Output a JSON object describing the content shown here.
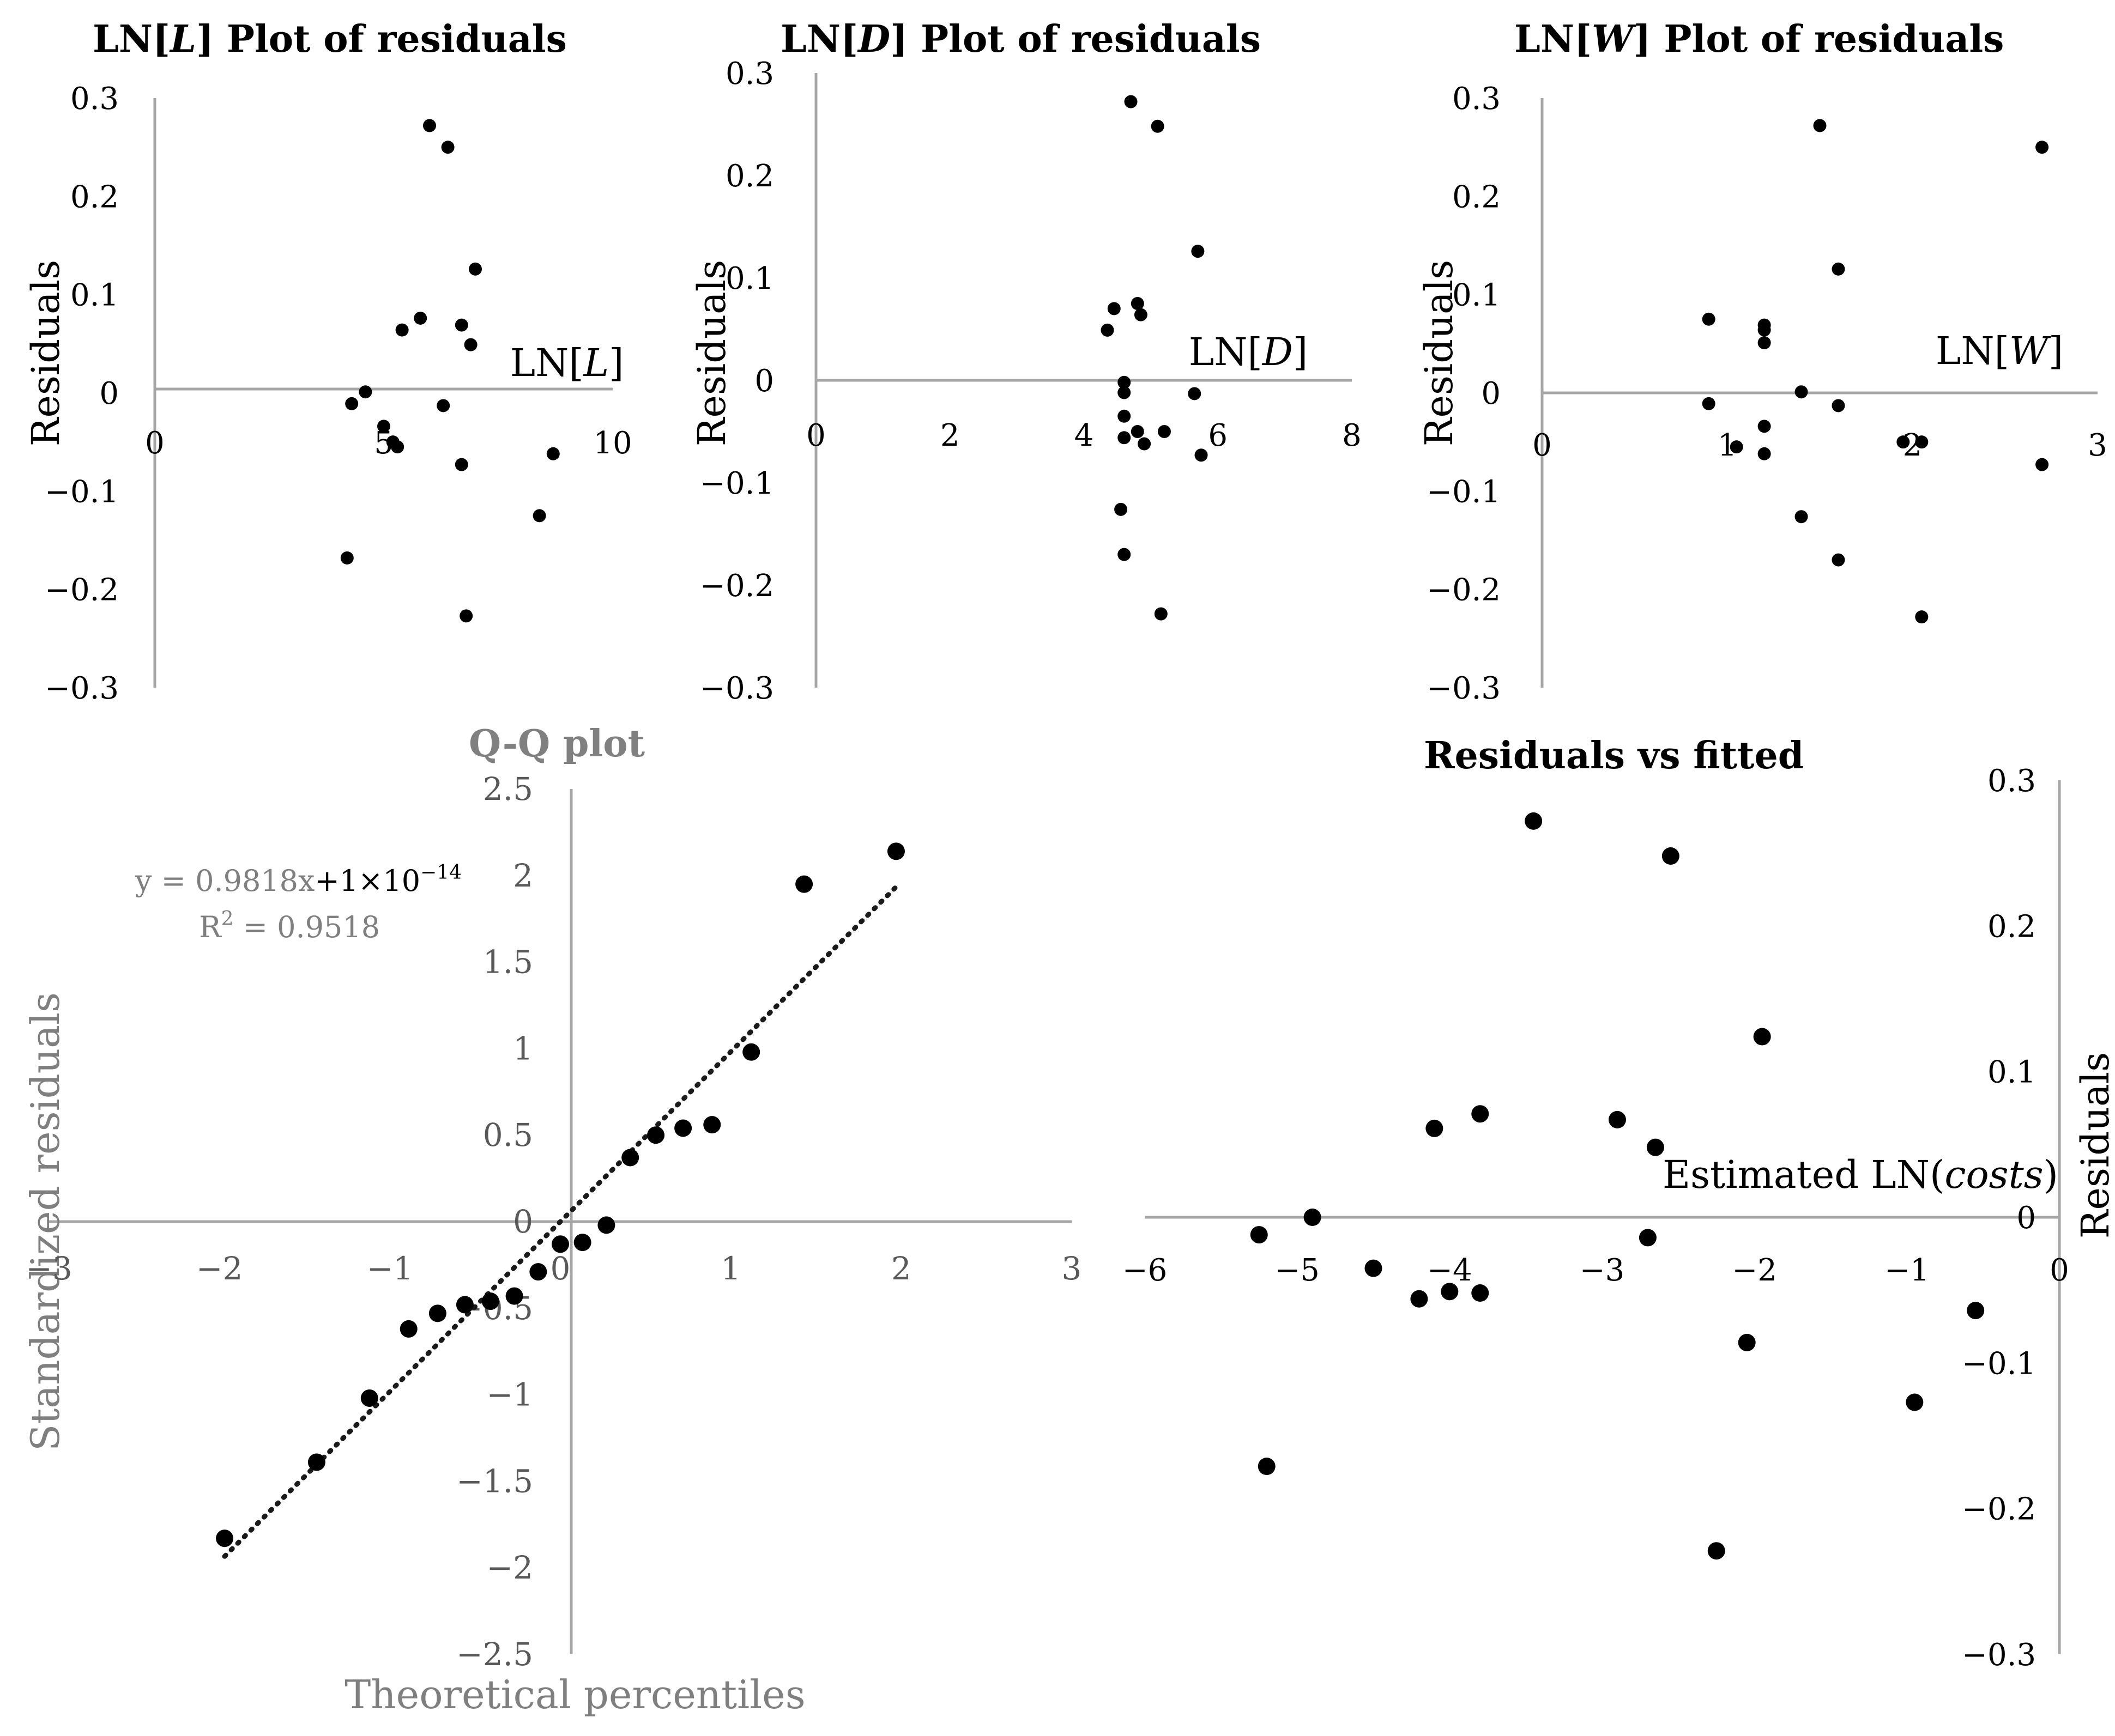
{
  "chart_data": [
    {
      "type": "scatter",
      "title": "LN[L] Plot of residuals",
      "title_parts": [
        "LN[",
        "L",
        "] Plot of residuals"
      ],
      "xlabel_parts": [
        "LN[",
        "L",
        "]"
      ],
      "ylabel": "Residuals",
      "xlim": [
        0,
        10
      ],
      "ylim": [
        -0.3,
        0.3
      ],
      "xticks": [
        0,
        5,
        10
      ],
      "xtick_labels": [
        "0",
        "5",
        "10"
      ],
      "yticks": [
        0.3,
        0.2,
        0.1,
        0,
        -0.1,
        -0.2,
        -0.3
      ],
      "ytick_labels": [
        "0.3",
        "0.2",
        "0.1",
        "0",
        "−0.1",
        "−0.2",
        "−0.3"
      ],
      "points": [
        {
          "x": 6.0,
          "y": 0.272
        },
        {
          "x": 6.4,
          "y": 0.25
        },
        {
          "x": 7.0,
          "y": 0.126
        },
        {
          "x": 5.8,
          "y": 0.076
        },
        {
          "x": 5.4,
          "y": 0.064
        },
        {
          "x": 6.7,
          "y": 0.069
        },
        {
          "x": 6.9,
          "y": 0.049
        },
        {
          "x": 4.6,
          "y": 0.001
        },
        {
          "x": 4.3,
          "y": -0.011
        },
        {
          "x": 6.3,
          "y": -0.013
        },
        {
          "x": 5.0,
          "y": -0.034
        },
        {
          "x": 5.2,
          "y": -0.05
        },
        {
          "x": 5.3,
          "y": -0.055
        },
        {
          "x": 8.7,
          "y": -0.062
        },
        {
          "x": 6.7,
          "y": -0.073
        },
        {
          "x": 8.4,
          "y": -0.125
        },
        {
          "x": 4.2,
          "y": -0.168
        },
        {
          "x": 6.8,
          "y": -0.227
        }
      ]
    },
    {
      "type": "scatter",
      "title": "LN[D] Plot of residuals",
      "title_parts": [
        "LN[",
        "D",
        "] Plot of residuals"
      ],
      "xlabel_parts": [
        "LN[",
        "D",
        "]"
      ],
      "ylabel": "Residuals",
      "xlim": [
        0,
        8
      ],
      "ylim": [
        -0.3,
        0.3
      ],
      "xticks": [
        0,
        2,
        4,
        6,
        8
      ],
      "xtick_labels": [
        "0",
        "2",
        "4",
        "6",
        "8"
      ],
      "yticks": [
        0.3,
        0.2,
        0.1,
        0,
        -0.1,
        -0.2,
        -0.3
      ],
      "ytick_labels": [
        "0.3",
        "0.2",
        "0.1",
        "0",
        "−0.1",
        "−0.2",
        "−0.3"
      ],
      "points": [
        {
          "x": 4.7,
          "y": 0.272
        },
        {
          "x": 5.1,
          "y": 0.248
        },
        {
          "x": 5.7,
          "y": 0.126
        },
        {
          "x": 4.8,
          "y": 0.075
        },
        {
          "x": 4.45,
          "y": 0.07
        },
        {
          "x": 4.85,
          "y": 0.064
        },
        {
          "x": 4.35,
          "y": 0.049
        },
        {
          "x": 4.6,
          "y": -0.002
        },
        {
          "x": 4.6,
          "y": -0.012
        },
        {
          "x": 5.65,
          "y": -0.013
        },
        {
          "x": 4.6,
          "y": -0.035
        },
        {
          "x": 4.8,
          "y": -0.05
        },
        {
          "x": 5.2,
          "y": -0.05
        },
        {
          "x": 4.6,
          "y": -0.056
        },
        {
          "x": 4.9,
          "y": -0.062
        },
        {
          "x": 5.75,
          "y": -0.073
        },
        {
          "x": 4.55,
          "y": -0.126
        },
        {
          "x": 4.6,
          "y": -0.17
        },
        {
          "x": 5.15,
          "y": -0.228
        }
      ]
    },
    {
      "type": "scatter",
      "title": "LN[W] Plot of residuals",
      "title_parts": [
        "LN[",
        "W",
        "] Plot of residuals"
      ],
      "xlabel_parts": [
        "LN[",
        "W",
        "]"
      ],
      "ylabel": "Residuals",
      "xlim": [
        0,
        3
      ],
      "ylim": [
        -0.3,
        0.3
      ],
      "xticks": [
        0,
        1,
        2,
        3
      ],
      "xtick_labels": [
        "0",
        "1",
        "2",
        "3"
      ],
      "yticks": [
        0.3,
        0.2,
        0.1,
        0,
        -0.1,
        -0.2,
        -0.3
      ],
      "ytick_labels": [
        "0.3",
        "0.2",
        "0.1",
        "0",
        "−0.1",
        "−0.2",
        "−0.3"
      ],
      "points": [
        {
          "x": 1.5,
          "y": 0.272
        },
        {
          "x": 2.7,
          "y": 0.25
        },
        {
          "x": 1.6,
          "y": 0.126
        },
        {
          "x": 0.9,
          "y": 0.075
        },
        {
          "x": 1.2,
          "y": 0.069
        },
        {
          "x": 1.2,
          "y": 0.064
        },
        {
          "x": 1.2,
          "y": 0.051
        },
        {
          "x": 1.4,
          "y": 0.001
        },
        {
          "x": 0.9,
          "y": -0.011
        },
        {
          "x": 1.6,
          "y": -0.013
        },
        {
          "x": 1.2,
          "y": -0.034
        },
        {
          "x": 1.95,
          "y": -0.05
        },
        {
          "x": 2.05,
          "y": -0.05
        },
        {
          "x": 1.05,
          "y": -0.055
        },
        {
          "x": 1.2,
          "y": -0.062
        },
        {
          "x": 2.7,
          "y": -0.073
        },
        {
          "x": 1.4,
          "y": -0.126
        },
        {
          "x": 1.6,
          "y": -0.17
        },
        {
          "x": 2.05,
          "y": -0.228
        }
      ]
    },
    {
      "type": "scatter",
      "title": "Q-Q plot",
      "xlabel": "Theoretical percentiles",
      "ylabel": "Standardized residuals",
      "xlim": [
        -3,
        3
      ],
      "ylim": [
        -2.5,
        2.5
      ],
      "xticks": [
        -3,
        -2,
        -1,
        0,
        1,
        2,
        3
      ],
      "xtick_labels": [
        "−3",
        "−2",
        "−1",
        "0",
        "1",
        "2",
        "3"
      ],
      "yticks": [
        2.5,
        2,
        1.5,
        1,
        0.5,
        0,
        -0.5,
        -1,
        -1.5,
        -2,
        -2.5
      ],
      "ytick_labels": [
        "2.5",
        "2",
        "1.5",
        "1",
        "0.5",
        "0",
        "−0.5",
        "−1",
        "−1.5",
        "−2",
        "−2.5"
      ],
      "trendline": {
        "type": "linear",
        "slope": 0.9818,
        "intercept": 0,
        "x_range": [
          -1.97,
          1.97
        ],
        "style": "dotted"
      },
      "equation_prefix": "y = 0.9818x",
      "equation_suffix": "+1×10",
      "equation_exponent": "−14",
      "r2_prefix": "R",
      "r2_sup": "2",
      "r2_value": " = 0.9518",
      "points": [
        {
          "x": -1.97,
          "y": -1.83
        },
        {
          "x": -1.43,
          "y": -1.39
        },
        {
          "x": -1.12,
          "y": -1.02
        },
        {
          "x": -0.89,
          "y": -0.62
        },
        {
          "x": -0.72,
          "y": -0.53
        },
        {
          "x": -0.56,
          "y": -0.48
        },
        {
          "x": -0.41,
          "y": -0.46
        },
        {
          "x": -0.27,
          "y": -0.43
        },
        {
          "x": -0.13,
          "y": -0.29
        },
        {
          "x": 0.0,
          "y": -0.13
        },
        {
          "x": 0.13,
          "y": -0.12
        },
        {
          "x": 0.27,
          "y": -0.02
        },
        {
          "x": 0.41,
          "y": 0.37
        },
        {
          "x": 0.56,
          "y": 0.5
        },
        {
          "x": 0.72,
          "y": 0.54
        },
        {
          "x": 0.89,
          "y": 0.56
        },
        {
          "x": 1.12,
          "y": 0.98
        },
        {
          "x": 1.43,
          "y": 1.95
        },
        {
          "x": 1.97,
          "y": 2.14
        }
      ]
    },
    {
      "type": "scatter",
      "title": "Residuals vs fitted",
      "xlabel_prefix": "Estimated LN(",
      "xlabel_italic": "costs",
      "xlabel_suffix": ")",
      "ylabel": "Residuals",
      "xlim": [
        -6,
        0
      ],
      "ylim": [
        -0.3,
        0.3
      ],
      "xticks": [
        -6,
        -5,
        -4,
        -3,
        -2,
        -1,
        0
      ],
      "xtick_labels": [
        "−6",
        "−5",
        "−4",
        "−3",
        "−2",
        "−1",
        "0"
      ],
      "yticks": [
        0.3,
        0.2,
        0.1,
        0,
        -0.1,
        -0.2,
        -0.3
      ],
      "ytick_labels": [
        "0.3",
        "0.2",
        "0.1",
        "0",
        "−0.1",
        "−0.2",
        "−0.3"
      ],
      "points": [
        {
          "x": -3.45,
          "y": 0.272
        },
        {
          "x": -2.55,
          "y": 0.248
        },
        {
          "x": -1.95,
          "y": 0.124
        },
        {
          "x": -3.8,
          "y": 0.071
        },
        {
          "x": -2.9,
          "y": 0.067
        },
        {
          "x": -4.1,
          "y": 0.061
        },
        {
          "x": -2.65,
          "y": 0.048
        },
        {
          "x": -4.9,
          "y": 0.0
        },
        {
          "x": -5.25,
          "y": -0.012
        },
        {
          "x": -2.7,
          "y": -0.014
        },
        {
          "x": -4.5,
          "y": -0.035
        },
        {
          "x": -4.0,
          "y": -0.051
        },
        {
          "x": -3.8,
          "y": -0.052
        },
        {
          "x": -4.2,
          "y": -0.056
        },
        {
          "x": -0.55,
          "y": -0.064
        },
        {
          "x": -2.05,
          "y": -0.086
        },
        {
          "x": -0.95,
          "y": -0.127
        },
        {
          "x": -5.2,
          "y": -0.171
        },
        {
          "x": -2.25,
          "y": -0.229
        }
      ]
    }
  ]
}
